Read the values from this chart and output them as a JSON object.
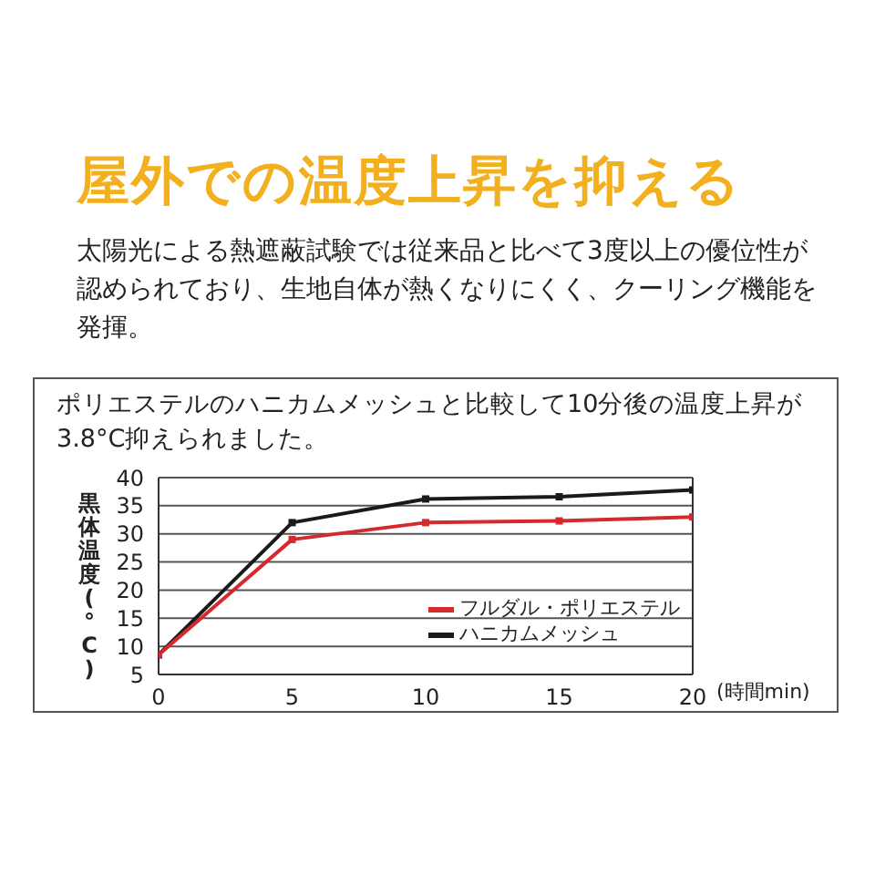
{
  "chart_data": {
    "type": "line",
    "title": "屋外での温度上昇を抑える",
    "subtitle": "太陽光による熱遮蔽試験では従来品と比べて3度以上の優位性が認められており、生地自体が熱くなりにくく、クーリング機能を発揮。",
    "annotations": [
      "ポリエステルのハニカムメッシュと比較して10分後の温度上昇が3.8°C抑えられました。"
    ],
    "xlabel": "(時間min)",
    "ylabel": "黒体温度(°C)",
    "x": [
      0,
      5,
      10,
      15,
      20
    ],
    "series": [
      {
        "name": "フルダル・ポリエステル",
        "color": "#d42a2f",
        "values": [
          8.5,
          29,
          32,
          32.3,
          33
        ]
      },
      {
        "name": "ハニカムメッシュ",
        "color": "#1a1a1a",
        "values": [
          8.5,
          32,
          36.2,
          36.6,
          37.8
        ]
      }
    ],
    "xlim": [
      0,
      20
    ],
    "xticks": [
      0,
      5,
      10,
      15,
      20
    ],
    "ylim": [
      5,
      40
    ],
    "yticks": [
      5,
      10,
      15,
      20,
      25,
      30,
      35,
      40
    ],
    "grid": "y",
    "legend": "bottom right",
    "marker": "square",
    "line_style": "solid"
  }
}
